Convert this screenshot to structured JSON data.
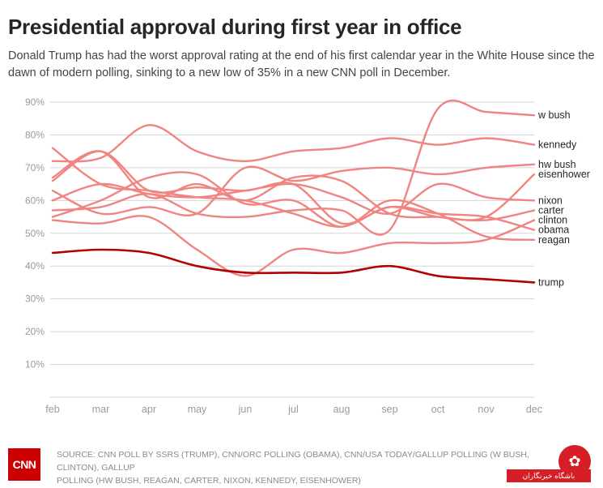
{
  "header": {
    "title": "Presidential approval during first year in office",
    "subtitle": "Donald Trump has had the worst approval rating at the end of his first calendar year in the White House since the dawn of modern polling, sinking to a new low of 35% in a new CNN poll in December."
  },
  "footer": {
    "logo_text": "CNN",
    "source": "SOURCE: CNN POLL BY SSRS (TRUMP), CNN/ORC POLLING (OBAMA), CNN/USA TODAY/GALLUP POLLING (W BUSH, CLINTON), GALLUP\nPOLLING (HW BUSH, REAGAN, CARTER, NIXON, KENNEDY, EISENHOWER)"
  },
  "watermark": {
    "icon": "swan-icon",
    "text": "باشگاه خبرنگاران"
  },
  "colors": {
    "others": "#ef8480",
    "trump": "#b30000",
    "grid": "#d6d6d6",
    "tick": "#9a9a9a",
    "label": "#262626"
  },
  "chart_data": {
    "type": "line",
    "x": [
      "feb",
      "mar",
      "apr",
      "may",
      "jun",
      "jul",
      "aug",
      "sep",
      "oct",
      "nov",
      "dec"
    ],
    "yticks": [
      10,
      20,
      30,
      40,
      50,
      60,
      70,
      80,
      90
    ],
    "ytick_labels": [
      "10%",
      "20%",
      "30%",
      "40%",
      "50%",
      "60%",
      "70%",
      "80%",
      "90%"
    ],
    "ylim": [
      0,
      90
    ],
    "grid": true,
    "legend": "end-labels-right",
    "series": [
      {
        "name": "w bush",
        "values": [
          57,
          58,
          62,
          56,
          55,
          57,
          57,
          51,
          88,
          87,
          86
        ]
      },
      {
        "name": "kennedy",
        "values": [
          72,
          73,
          83,
          75,
          72,
          75,
          76,
          79,
          77,
          79,
          77
        ]
      },
      {
        "name": "hw bush",
        "values": [
          63,
          56,
          58,
          56,
          70,
          66,
          69,
          70,
          68,
          70,
          71
        ]
      },
      {
        "name": "eisenhower",
        "values": [
          67,
          75,
          61,
          65,
          60,
          67,
          66,
          56,
          55,
          55,
          68
        ]
      },
      {
        "name": "nixon",
        "values": [
          60,
          65,
          62,
          61,
          63,
          65,
          61,
          56,
          65,
          61,
          60
        ]
      },
      {
        "name": "carter",
        "values": [
          66,
          75,
          63,
          64,
          63,
          65,
          53,
          58,
          55,
          54,
          57
        ]
      },
      {
        "name": "clinton",
        "values": [
          54,
          53,
          55,
          45,
          37,
          45,
          44,
          47,
          47,
          48,
          54
        ]
      },
      {
        "name": "obama",
        "values": [
          76,
          65,
          63,
          61,
          60,
          56,
          52,
          58,
          56,
          55,
          51
        ]
      },
      {
        "name": "reagan",
        "values": [
          55,
          60,
          67,
          68,
          59,
          60,
          52,
          60,
          56,
          49,
          48
        ]
      },
      {
        "name": "trump",
        "values": [
          44,
          45,
          44,
          40,
          38,
          38,
          38,
          40,
          37,
          36,
          35
        ]
      }
    ]
  }
}
